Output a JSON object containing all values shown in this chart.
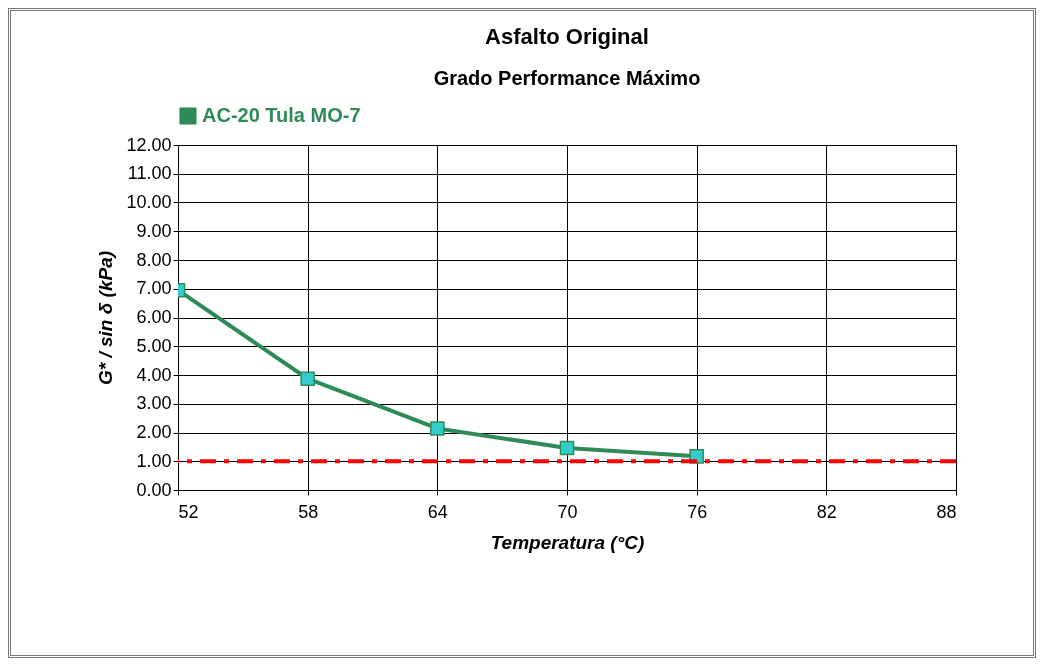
{
  "chart_data": {
    "type": "line",
    "title": "Asfalto Original",
    "subtitle": "Grado Performance Máximo",
    "xlabel": "Temperatura (°C)",
    "ylabel": "G* / sin δ (kPa)",
    "x": [
      52,
      58,
      64,
      70,
      76
    ],
    "series": [
      {
        "name": "AC-20 Tula MO-7",
        "color": "#2e8b57",
        "values": [
          6.95,
          3.87,
          2.14,
          1.46,
          1.17
        ]
      }
    ],
    "marker": "square",
    "xlim": [
      52,
      88
    ],
    "xticks": [
      52,
      58,
      64,
      70,
      76,
      82,
      88
    ],
    "ylim": [
      0,
      12
    ],
    "yticks": [
      {
        "value": 0,
        "label": "0.00"
      },
      {
        "value": 1,
        "label": "1.00"
      },
      {
        "value": 2,
        "label": "2.00"
      },
      {
        "value": 3,
        "label": "3.00"
      },
      {
        "value": 4,
        "label": "4.00"
      },
      {
        "value": 5,
        "label": "5.00"
      },
      {
        "value": 6,
        "label": "6.00"
      },
      {
        "value": 7,
        "label": "7.00"
      },
      {
        "value": 8,
        "label": "8.00"
      },
      {
        "value": 9,
        "label": "9.00"
      },
      {
        "value": 10,
        "label": "10.00"
      },
      {
        "value": 11,
        "label": "11.00"
      },
      {
        "value": 12,
        "label": "12.00"
      }
    ],
    "ref_lines": [
      {
        "axis": "y",
        "value": 1,
        "color": "#ff0000",
        "line_style": "dashed"
      }
    ],
    "grid": true,
    "legend": "top"
  }
}
